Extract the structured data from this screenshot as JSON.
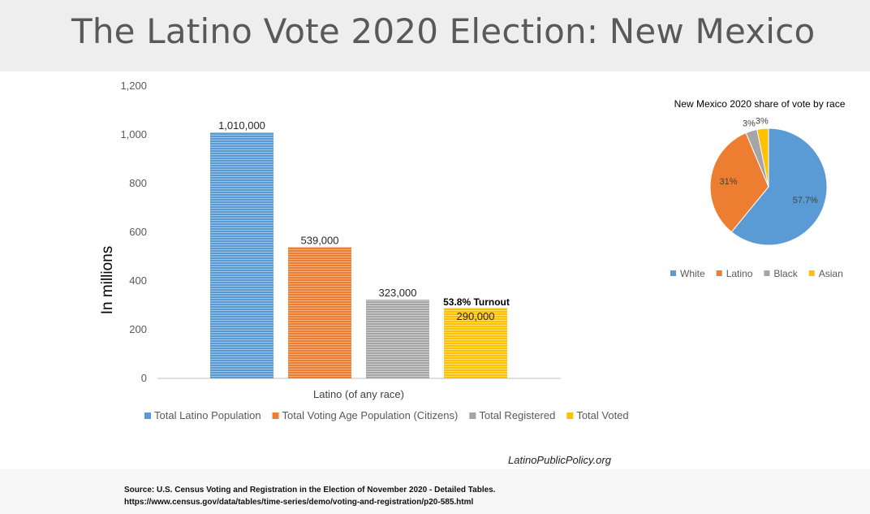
{
  "page": {
    "title": "The Latino Vote 2020 Election: New Mexico",
    "watermark": "LatinoPublicPolicy.org",
    "source_line1": "Source: U.S. Census  Voting and Registration in the Election of November 2020 - Detailed Tables.",
    "source_line2": "https://www.census.gov/data/tables/time-series/demo/voting-and-registration/p20-585.html"
  },
  "chart_data": [
    {
      "type": "bar",
      "title": "",
      "ylabel": "In millions",
      "xlabel": "Latino (of any race)",
      "categories": [
        "Latino (of any race)"
      ],
      "ylim": [
        0,
        1200
      ],
      "yticks": [
        "0",
        "200",
        "400",
        "600",
        "800",
        "1,000",
        "1,200"
      ],
      "ytick_values": [
        0,
        200,
        400,
        600,
        800,
        1000,
        1200
      ],
      "series": [
        {
          "name": "Total Latino Population",
          "value": 1010,
          "label": "1,010,000",
          "color": "#5b9bd5"
        },
        {
          "name": "Total Voting Age Population (Citizens)",
          "value": 539,
          "label": "539,000",
          "color": "#ed7d31"
        },
        {
          "name": "Total Registered",
          "value": 323,
          "label": "323,000",
          "color": "#a5a5a5"
        },
        {
          "name": "Total Voted",
          "value": 290,
          "label": "290,000",
          "color": "#ffc000"
        }
      ],
      "annotation": "53.8% Turnout",
      "legend_position": "bottom",
      "grid": false
    },
    {
      "type": "pie",
      "title": "New Mexico 2020 share of vote by race",
      "slices": [
        {
          "name": "White",
          "value": 57.7,
          "label": "57.7%",
          "color": "#5b9bd5"
        },
        {
          "name": "Latino",
          "value": 31,
          "label": "31%",
          "color": "#ed7d31"
        },
        {
          "name": "Black",
          "value": 3,
          "label": "3%",
          "color": "#a5a5a5"
        },
        {
          "name": "Asian",
          "value": 3,
          "label": "3%",
          "color": "#ffc000"
        }
      ],
      "legend_position": "bottom"
    }
  ]
}
